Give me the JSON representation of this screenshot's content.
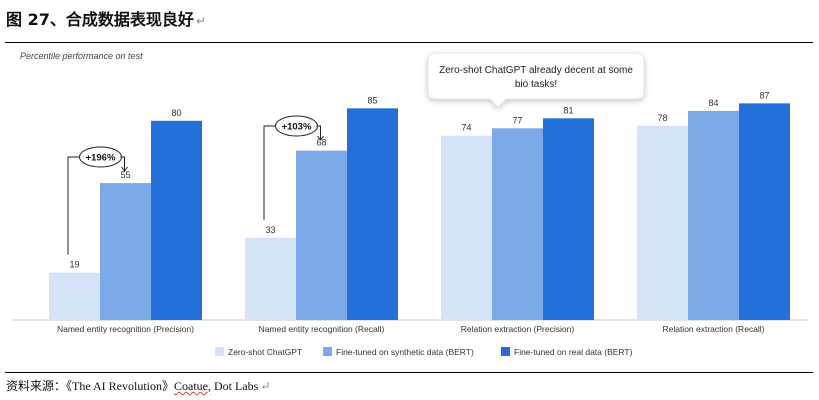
{
  "header": {
    "title": "图 27、合成数据表现良好",
    "return_mark": "↵"
  },
  "source": {
    "prefix": "资料来源：《The AI Revolution》",
    "underlined": "Coatue,",
    "rest": " Dot Labs",
    "return_mark": "↵"
  },
  "chart_data": {
    "type": "bar",
    "subtitle": "Percentile performance on test",
    "categories": [
      "Named entity recognition (Precision)",
      "Named entity recognition (Recall)",
      "Relation extraction (Precision)",
      "Relation extraction (Recall)"
    ],
    "series": [
      {
        "name": "Zero-shot ChatGPT",
        "color": "#d5e3f7",
        "values": [
          19,
          33,
          74,
          78
        ]
      },
      {
        "name": "Fine-tuned on synthetic data (BERT)",
        "color": "#7ca9e8",
        "values": [
          55,
          68,
          77,
          84
        ]
      },
      {
        "name": "Fine-tuned on real data (BERT)",
        "color": "#2470db",
        "values": [
          80,
          85,
          81,
          87
        ]
      }
    ],
    "ylim": [
      0,
      100
    ],
    "grid": false,
    "legend_position": "bottom",
    "annotations": [
      {
        "text": "+196%",
        "category": 0
      },
      {
        "text": "+103%",
        "category": 1
      },
      {
        "text": "Zero-shot ChatGPT already decent at some bio tasks!",
        "lines": [
          "Zero-shot ChatGPT already decent at some",
          "bio tasks!"
        ]
      }
    ]
  }
}
